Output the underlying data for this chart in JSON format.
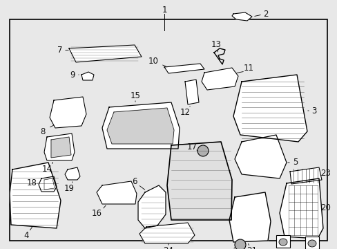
{
  "bg_color": "#e8e8e8",
  "box_bg": "#e8e8e8",
  "part_fc": "#ffffff",
  "part_ec": "#000000",
  "lc": "#000000",
  "figsize": [
    4.89,
    3.6
  ],
  "dpi": 100,
  "label_fs": 8.5
}
